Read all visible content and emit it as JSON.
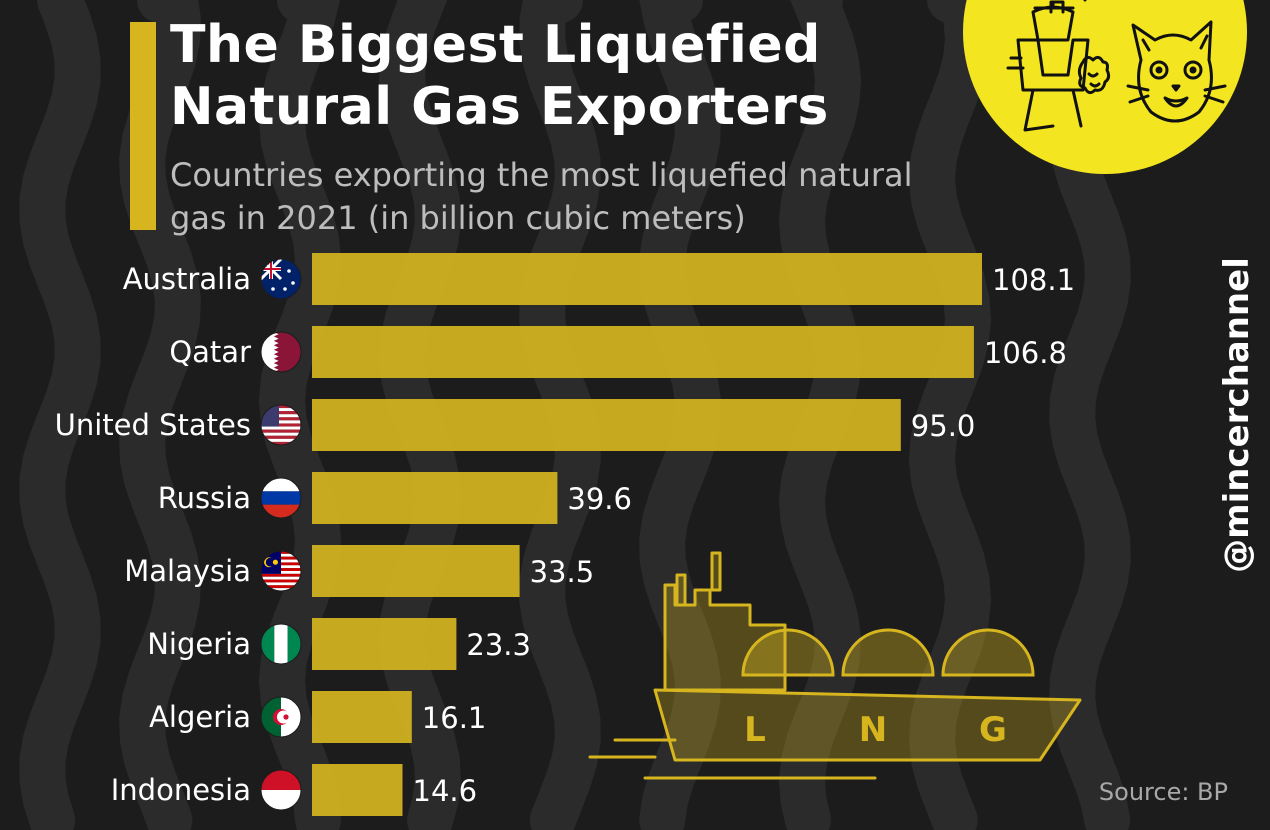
{
  "title": "The Biggest Liquefied Natural Gas Exporters",
  "subtitle": "Countries exporting the most liquefied natural gas in 2021 (in billion cubic meters)",
  "source": "Source: BP",
  "handle": "@mincerchannel",
  "ship_letters": [
    "L",
    "N",
    "G"
  ],
  "colors": {
    "background": "#1c1c1c",
    "bar": "#d6b51f",
    "logo": "#f3e620",
    "subtitle": "#bdbdbd"
  },
  "chart_data": {
    "type": "bar",
    "orientation": "horizontal",
    "title": "The Biggest Liquefied Natural Gas Exporters",
    "subtitle": "Countries exporting the most liquefied natural gas in 2021 (in billion cubic meters)",
    "categories": [
      "Australia",
      "Qatar",
      "United States",
      "Russia",
      "Malaysia",
      "Nigeria",
      "Algeria",
      "Indonesia"
    ],
    "values": [
      108.1,
      106.8,
      95.0,
      39.6,
      33.5,
      23.3,
      16.1,
      14.6
    ],
    "value_labels": [
      "108.1",
      "106.8",
      "95.0",
      "39.6",
      "33.5",
      "23.3",
      "16.1",
      "14.6"
    ],
    "flags": [
      "australia-flag-icon",
      "qatar-flag-icon",
      "usa-flag-icon",
      "russia-flag-icon",
      "malaysia-flag-icon",
      "nigeria-flag-icon",
      "algeria-flag-icon",
      "indonesia-flag-icon"
    ],
    "xlim": [
      0,
      108.1
    ],
    "grid": false,
    "legend": "none"
  }
}
